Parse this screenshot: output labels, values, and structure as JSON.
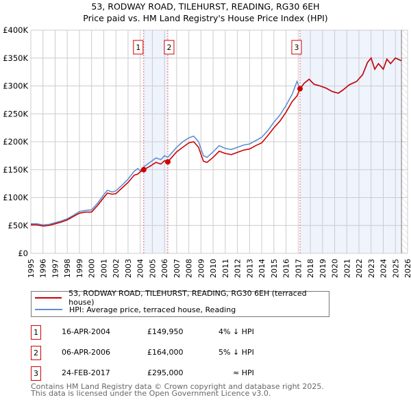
{
  "title_line1": "53, RODWAY ROAD, TILEHURST, READING, RG30 6EH",
  "title_line2": "Price paid vs. HM Land Registry's House Price Index (HPI)",
  "chart_data": {
    "type": "line",
    "xlim": [
      1995,
      2026
    ],
    "ylim": [
      0,
      400000
    ],
    "yticks": [
      0,
      50000,
      100000,
      150000,
      200000,
      250000,
      300000,
      350000,
      400000
    ],
    "ytick_labels": [
      "£0",
      "£50K",
      "£100K",
      "£150K",
      "£200K",
      "£250K",
      "£300K",
      "£350K",
      "£400K"
    ],
    "xticks": [
      1995,
      1996,
      1997,
      1998,
      1999,
      2000,
      2001,
      2002,
      2003,
      2004,
      2005,
      2006,
      2007,
      2008,
      2009,
      2010,
      2011,
      2012,
      2013,
      2014,
      2015,
      2016,
      2017,
      2018,
      2019,
      2020,
      2021,
      2022,
      2023,
      2024,
      2025,
      2026
    ],
    "grid": true,
    "x": [
      1995,
      1995.5,
      1996,
      1996.5,
      1997,
      1997.5,
      1998,
      1998.5,
      1999,
      1999.5,
      2000,
      2000.5,
      2001,
      2001.3,
      2001.7,
      2002,
      2002.5,
      2003,
      2003.5,
      2003.8,
      2004,
      2004.29,
      2004.8,
      2005.3,
      2005.7,
      2006,
      2006.27,
      2006.6,
      2007,
      2007.5,
      2008,
      2008.4,
      2008.8,
      2009.2,
      2009.5,
      2010,
      2010.5,
      2011,
      2011.5,
      2012,
      2012.5,
      2013,
      2013.5,
      2014,
      2014.5,
      2015,
      2015.5,
      2016,
      2016.5,
      2016.9,
      2017.15,
      2017.5,
      2017.9,
      2018.3,
      2018.8,
      2019.3,
      2019.8,
      2020.3,
      2020.7,
      2021.2,
      2021.8,
      2022.3,
      2022.7,
      2023.0,
      2023.3,
      2023.6,
      2024.0,
      2024.3,
      2024.6,
      2025.0,
      2025.5
    ],
    "series": [
      {
        "name": "53, RODWAY ROAD, TILEHURST, READING, RG30 6EH (terraced house)",
        "color": "#cc0000",
        "values": [
          51,
          51,
          49,
          50,
          53,
          56,
          60,
          66,
          72,
          74,
          74,
          86,
          100,
          108,
          106,
          107,
          117,
          127,
          140,
          142,
          146,
          149.95,
          156,
          163,
          160,
          166,
          164,
          172,
          182,
          190,
          198,
          200,
          190,
          165,
          163,
          172,
          183,
          179,
          177,
          181,
          185,
          187,
          193,
          198,
          211,
          225,
          237,
          253,
          272,
          282,
          295,
          305,
          312,
          303,
          300,
          296,
          290,
          287,
          293,
          302,
          308,
          320,
          342,
          350,
          330,
          340,
          330,
          348,
          340,
          350,
          345
        ]
      },
      {
        "name": "HPI: Average price, terraced house, Reading",
        "color": "#5b8fd4",
        "values": [
          53,
          53,
          51,
          52,
          55,
          58,
          62,
          68,
          75,
          77,
          78,
          90,
          105,
          113,
          110,
          112,
          122,
          133,
          147,
          152,
          148,
          155,
          163,
          171,
          168,
          175,
          172,
          180,
          190,
          200,
          207,
          210,
          200,
          175,
          172,
          182,
          193,
          188,
          186,
          190,
          194,
          196,
          202,
          208,
          220,
          235,
          248,
          265,
          285,
          308,
          295,
          305,
          312,
          303,
          300,
          296,
          290,
          287,
          293,
          302,
          308,
          320,
          342,
          350,
          330,
          340,
          330,
          348,
          340,
          350,
          345
        ]
      }
    ],
    "sales": [
      {
        "id": "1",
        "x": 2004.29,
        "price": 149950,
        "date": "16-APR-2004",
        "price_label": "£149,950",
        "hpi_diff": "4% ↓ HPI"
      },
      {
        "id": "2",
        "x": 2006.27,
        "price": 164000,
        "date": "06-APR-2006",
        "price_label": "£164,000",
        "hpi_diff": "5% ↓ HPI"
      },
      {
        "id": "3",
        "x": 2017.15,
        "price": 295000,
        "date": "24-FEB-2017",
        "price_label": "£295,000",
        "hpi_diff": "≈ HPI"
      }
    ],
    "data_end": 2025.5
  },
  "legend": {
    "red": "53, RODWAY ROAD, TILEHURST, READING, RG30 6EH (terraced house)",
    "blue": "HPI: Average price, terraced house, Reading"
  },
  "footer": {
    "line1": "Contains HM Land Registry data © Crown copyright and database right 2025.",
    "line2": "This data is licensed under the Open Government Licence v3.0."
  }
}
